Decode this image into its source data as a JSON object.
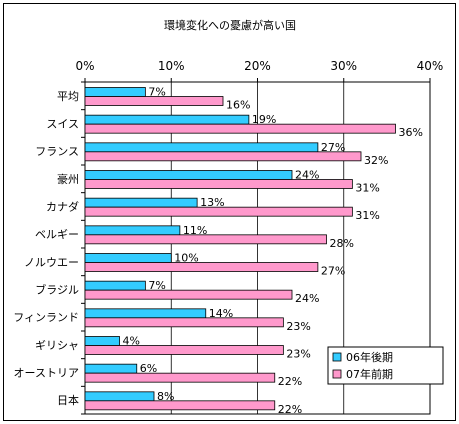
{
  "chart_data": {
    "type": "bar",
    "orientation": "horizontal",
    "title": "環境変化への憂慮が高い国",
    "xlim": [
      0,
      40
    ],
    "x_ticks": [
      "0%",
      "10%",
      "20%",
      "30%",
      "40%"
    ],
    "gridlines": true,
    "legend_position": "bottom-right",
    "categories": [
      "平均",
      "スイス",
      "フランス",
      "豪州",
      "カナダ",
      "ベルギー",
      "ノルウエー",
      "ブラジル",
      "フィンランド",
      "ギリシャ",
      "オーストリア",
      "日本"
    ],
    "series": [
      {
        "name": "06年後期",
        "color": "#33ccff",
        "values": [
          7,
          19,
          27,
          24,
          13,
          11,
          10,
          7,
          14,
          4,
          6,
          8
        ],
        "labels": [
          "7%",
          "19%",
          "27%",
          "24%",
          "13%",
          "11%",
          "10%",
          "7%",
          "14%",
          "4%",
          "6%",
          "8%"
        ]
      },
      {
        "name": "07年前期",
        "color": "#ff99cc",
        "values": [
          16,
          36,
          32,
          31,
          31,
          28,
          27,
          24,
          23,
          23,
          22,
          22
        ],
        "labels": [
          "16%",
          "36%",
          "32%",
          "31%",
          "31%",
          "28%",
          "27%",
          "24%",
          "23%",
          "23%",
          "22%",
          "22%"
        ]
      }
    ]
  }
}
